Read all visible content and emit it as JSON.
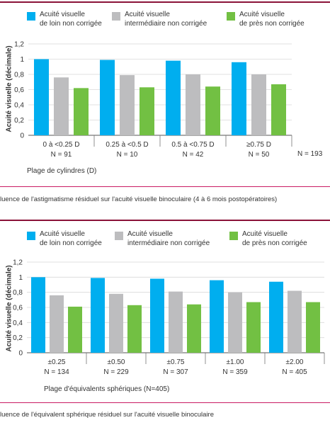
{
  "colors": {
    "loin": "#00aeef",
    "intermediaire": "#bdbdbf",
    "pres": "#72c043",
    "top_rule": "#8a1238",
    "separator": "#c91b63"
  },
  "legend": [
    {
      "line1": "Acuité visuelle",
      "line2": "de loin non corrigée"
    },
    {
      "line1": "Acuité visuelle",
      "line2": "intermédiaire non corrigée"
    },
    {
      "line1": "Acuité visuelle",
      "line2": "de près non corrigée"
    }
  ],
  "captions": [
    "luence de l'astigmatisme résiduel sur l'acuité visuelle binoculaire (4 à 6 mois postopératoires)",
    "luence de l'équivalent sphérique résiduel sur l'acuité visuelle binoculaire"
  ],
  "chart_data": [
    {
      "type": "bar",
      "ylabel": "Acuité visuelle (décimale)",
      "xlabel": "Plage de cylindres (D)",
      "ylim": [
        0,
        1.2
      ],
      "yticks": [
        "0",
        "0,2",
        "0,4",
        "0,6",
        "0,8",
        "1",
        "1,2"
      ],
      "grid": true,
      "legend_position": "top",
      "categories": [
        "0 à <0.25 D",
        "0.25 à <0.5 D",
        "0.5 à <0.75 D",
        "≥0.75 D"
      ],
      "n_labels": [
        "N = 91",
        "N = 10",
        "N = 42",
        "N = 50"
      ],
      "n_total": "N = 193",
      "series": [
        {
          "name": "Acuité visuelle de loin non corrigée",
          "values": [
            1.0,
            0.99,
            0.98,
            0.96
          ]
        },
        {
          "name": "Acuité visuelle intermédiaire non corrigée",
          "values": [
            0.76,
            0.79,
            0.8,
            0.8
          ]
        },
        {
          "name": "Acuité visuelle de près non corrigée",
          "values": [
            0.62,
            0.63,
            0.64,
            0.67
          ]
        }
      ]
    },
    {
      "type": "bar",
      "ylabel": "Acuité visuelle (décimale)",
      "xlabel": "Plage d'équivalents sphériques (N=405)",
      "ylim": [
        0,
        1.2
      ],
      "yticks": [
        "0",
        "0,2",
        "0,4",
        "0,6",
        "0,8",
        "1",
        "1,2"
      ],
      "grid": true,
      "legend_position": "top",
      "categories": [
        "±0.25",
        "±0.50",
        "±0.75",
        "±1.00",
        "±2.00"
      ],
      "n_labels": [
        "N = 134",
        "N = 229",
        "N = 307",
        "N = 359",
        "N = 405"
      ],
      "series": [
        {
          "name": "Acuité visuelle de loin non corrigée",
          "values": [
            1.0,
            0.99,
            0.98,
            0.96,
            0.94
          ]
        },
        {
          "name": "Acuité visuelle intermédiaire non corrigée",
          "values": [
            0.76,
            0.78,
            0.81,
            0.8,
            0.82
          ]
        },
        {
          "name": "Acuité visuelle de près non corrigée",
          "values": [
            0.61,
            0.63,
            0.64,
            0.67,
            0.67
          ]
        }
      ]
    }
  ]
}
